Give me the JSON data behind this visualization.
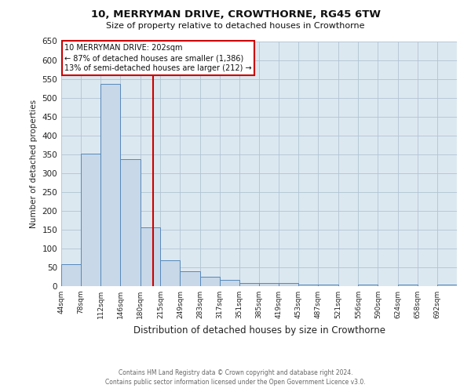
{
  "title": "10, MERRYMAN DRIVE, CROWTHORNE, RG45 6TW",
  "subtitle": "Size of property relative to detached houses in Crowthorne",
  "xlabel": "Distribution of detached houses by size in Crowthorne",
  "ylabel": "Number of detached properties",
  "footer_line1": "Contains HM Land Registry data © Crown copyright and database right 2024.",
  "footer_line2": "Contains public sector information licensed under the Open Government Licence v3.0.",
  "annotation_line1": "10 MERRYMAN DRIVE: 202sqm",
  "annotation_line2": "← 87% of detached houses are smaller (1,386)",
  "annotation_line3": "13% of semi-detached houses are larger (212) →",
  "property_line_x": 202,
  "bar_edges": [
    44,
    78,
    112,
    146,
    180,
    215,
    249,
    283,
    317,
    351,
    385,
    419,
    453,
    487,
    521,
    556,
    590,
    624,
    658,
    692,
    726
  ],
  "bar_heights": [
    58,
    352,
    537,
    337,
    157,
    68,
    40,
    24,
    17,
    8,
    9,
    9,
    4,
    4,
    0,
    5,
    0,
    5,
    0,
    5
  ],
  "bar_color": "#c8d8e8",
  "bar_edge_color": "#5588bb",
  "property_line_color": "#cc0000",
  "annotation_box_color": "#cc0000",
  "background_color": "#ffffff",
  "plot_bg_color": "#dce8f0",
  "grid_color": "#b0c4d4",
  "ylim": [
    0,
    650
  ],
  "xlim": [
    44,
    726
  ],
  "yticks": [
    0,
    50,
    100,
    150,
    200,
    250,
    300,
    350,
    400,
    450,
    500,
    550,
    600,
    650
  ]
}
